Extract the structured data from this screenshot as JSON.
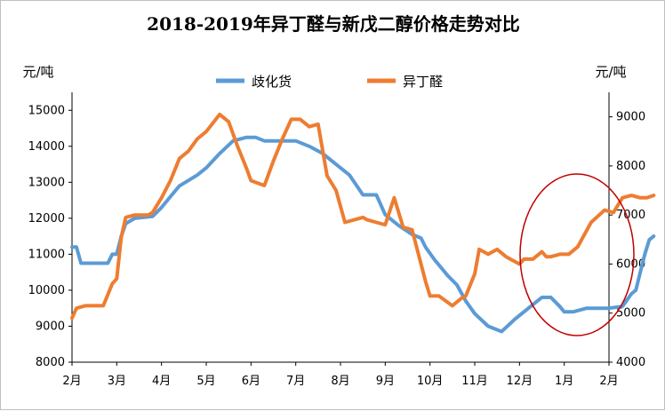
{
  "chart_data": {
    "type": "line",
    "title": "2018-2019年异丁醛与新戊二醇价格走势对比",
    "left_unit": "元/吨",
    "right_unit": "元/吨",
    "x_ticks": [
      "2月",
      "3月",
      "4月",
      "5月",
      "6月",
      "7月",
      "8月",
      "9月",
      "10月",
      "11月",
      "12月",
      "1月",
      "2月"
    ],
    "y_left": {
      "min": 8000,
      "max": 15500,
      "ticks": [
        8000,
        9000,
        10000,
        11000,
        12000,
        13000,
        14000,
        15000
      ]
    },
    "y_right": {
      "min": 4000,
      "max": 9500,
      "ticks": [
        4000,
        5000,
        6000,
        7000,
        8000,
        9000
      ]
    },
    "legend": [
      "歧化货",
      "异丁醛"
    ],
    "colors": {
      "series1": "#5b9bd5",
      "series2": "#ed7d31",
      "ellipse": "#c00000"
    },
    "series": [
      {
        "name": "歧化货",
        "axis": "left",
        "x": [
          0,
          0.1,
          0.2,
          0.8,
          0.9,
          1.0,
          1.1,
          1.2,
          1.4,
          1.8,
          2.0,
          2.2,
          2.4,
          2.6,
          2.8,
          3.0,
          3.3,
          3.6,
          3.9,
          4.1,
          4.3,
          4.5,
          4.7,
          5.0,
          5.3,
          5.6,
          5.9,
          6.2,
          6.5,
          6.8,
          7.0,
          7.3,
          7.6,
          7.8,
          7.9,
          8.1,
          8.4,
          8.6,
          8.8,
          9.0,
          9.3,
          9.6,
          9.9,
          10.2,
          10.5,
          10.7,
          10.9,
          11.0,
          11.2,
          11.5,
          11.8,
          12.0,
          12.3,
          12.5,
          12.6,
          12.7,
          12.8,
          12.9,
          13.0
        ],
        "values": [
          11200,
          11200,
          10750,
          10750,
          11000,
          11000,
          11500,
          11850,
          12000,
          12050,
          12300,
          12600,
          12900,
          13050,
          13200,
          13400,
          13800,
          14150,
          14250,
          14250,
          14150,
          14150,
          14150,
          14150,
          14000,
          13800,
          13500,
          13200,
          12650,
          12650,
          12100,
          11800,
          11550,
          11450,
          11200,
          10850,
          10400,
          10150,
          9700,
          9350,
          9000,
          8850,
          9200,
          9500,
          9800,
          9800,
          9550,
          9400,
          9400,
          9500,
          9500,
          9500,
          9550,
          9900,
          10000,
          10500,
          11000,
          11400,
          11500
        ]
      },
      {
        "name": "异丁醛",
        "axis": "right",
        "x": [
          0,
          0.1,
          0.3,
          0.7,
          0.9,
          1.0,
          1.1,
          1.2,
          1.4,
          1.7,
          1.8,
          2.0,
          2.2,
          2.4,
          2.6,
          2.8,
          3.0,
          3.3,
          3.5,
          3.7,
          3.9,
          4.0,
          4.3,
          4.5,
          4.7,
          4.9,
          5.1,
          5.3,
          5.5,
          5.7,
          5.9,
          6.1,
          6.3,
          6.5,
          6.6,
          6.8,
          7.0,
          7.2,
          7.4,
          7.6,
          7.9,
          8.0,
          8.2,
          8.5,
          8.7,
          8.8,
          9.0,
          9.1,
          9.3,
          9.5,
          9.7,
          9.9,
          10.0,
          10.1,
          10.3,
          10.5,
          10.6,
          10.7,
          10.9,
          11.1,
          11.3,
          11.6,
          11.9,
          12.1,
          12.3,
          12.5,
          12.7,
          12.85,
          13.0
        ],
        "values": [
          4900,
          5100,
          5150,
          5150,
          5600,
          5700,
          6550,
          6950,
          7000,
          7000,
          7050,
          7350,
          7700,
          8150,
          8300,
          8550,
          8700,
          9050,
          8900,
          8400,
          7950,
          7700,
          7600,
          8100,
          8550,
          8950,
          8950,
          8800,
          8850,
          7800,
          7500,
          6850,
          6900,
          6950,
          6900,
          6850,
          6800,
          7350,
          6750,
          6700,
          5650,
          5350,
          5350,
          5150,
          5300,
          5350,
          5800,
          6300,
          6200,
          6300,
          6150,
          6050,
          6000,
          6100,
          6100,
          6250,
          6150,
          6150,
          6200,
          6200,
          6350,
          6850,
          7100,
          7050,
          7350,
          7400,
          7350,
          7350,
          7400
        ]
      }
    ]
  }
}
